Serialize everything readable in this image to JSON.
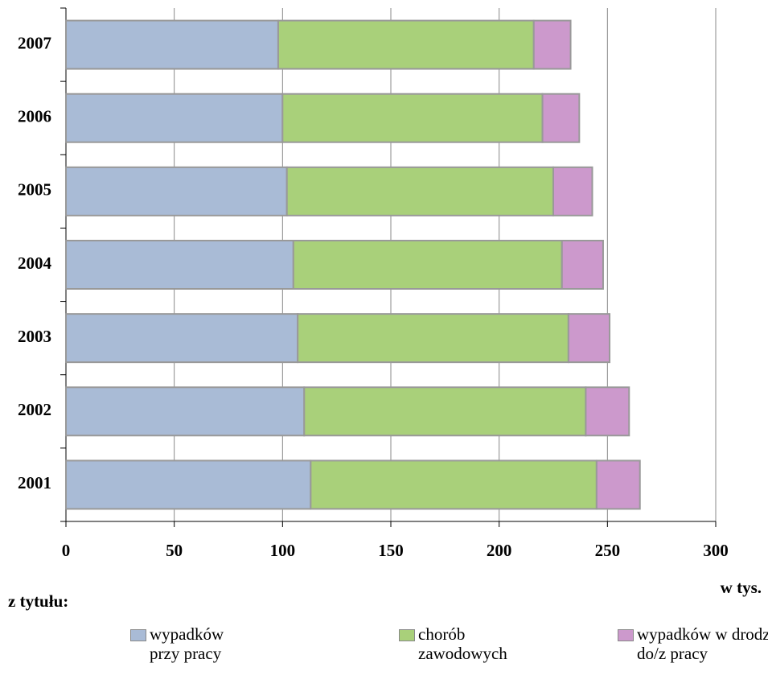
{
  "chart_data": {
    "type": "stacked_bar_horizontal",
    "categories": [
      "2001",
      "2002",
      "2003",
      "2004",
      "2005",
      "2006",
      "2007"
    ],
    "series": [
      {
        "name": "wypadków przy pracy",
        "color": "#a9bbd6",
        "values": [
          113,
          110,
          107,
          105,
          102,
          100,
          98
        ]
      },
      {
        "name": "chorób zawodowych",
        "color": "#a9d07a",
        "values": [
          132,
          130,
          125,
          124,
          123,
          120,
          118
        ]
      },
      {
        "name": "wypadków w drodze do/z pracy",
        "color": "#cc99cc",
        "values": [
          20,
          20,
          19,
          19,
          18,
          17,
          17
        ]
      }
    ],
    "xlim": [
      0,
      300
    ],
    "xticks": [
      0,
      50,
      100,
      150,
      200,
      250,
      300
    ],
    "grid": true,
    "x_label": "w tys.",
    "legend_title": "z tytułu:",
    "legend_position": "bottom"
  }
}
